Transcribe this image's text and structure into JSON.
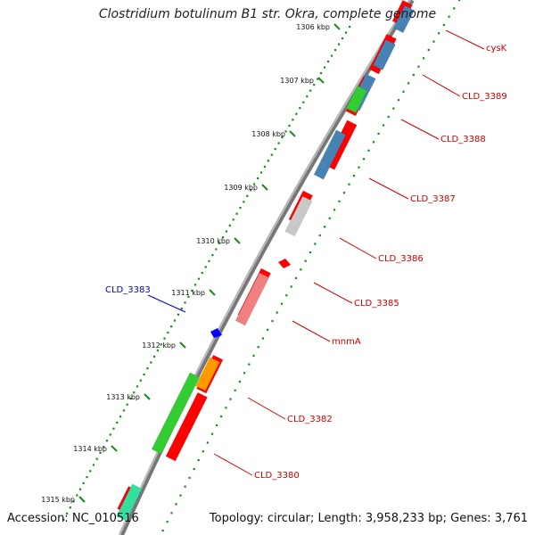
{
  "title": "Clostridium botulinum B1 str. Okra, complete genome",
  "footer": {
    "accession": "Accession: NC_010516",
    "summary": "Topology: circular; Length: 3,958,233 bp; Genes: 3,761"
  },
  "colors": {
    "backbone": "#888888",
    "ruler_dots": "#1a8a1a",
    "forward_cds": "#ff0000",
    "reverse_cds": "#4682b4",
    "label_reverse": "#cc0000",
    "label_forward": "#0000cc",
    "gray_feature": "#c8c8c8",
    "pink_feature": "#f08080",
    "green_feature": "#33cc33",
    "orange_feature": "#ff9900",
    "teal_feature": "#33e0a0"
  },
  "ruler": {
    "tick_labels": [
      "1306 kbp",
      "1307 kbp",
      "1308 kbp",
      "1309 kbp",
      "1310 kbp",
      "1311 kbp",
      "1312 kbp",
      "1313 kbp",
      "1314 kbp",
      "1315 kbp"
    ]
  },
  "gene_labels": [
    {
      "text": "cysK",
      "color": "#cc0000"
    },
    {
      "text": "CLD_3389",
      "color": "#cc0000"
    },
    {
      "text": "CLD_3388",
      "color": "#cc0000"
    },
    {
      "text": "CLD_3387",
      "color": "#cc0000"
    },
    {
      "text": "CLD_3386",
      "color": "#cc0000"
    },
    {
      "text": "CLD_3385",
      "color": "#cc0000"
    },
    {
      "text": "mnmA",
      "color": "#cc0000"
    },
    {
      "text": "CLD_3383",
      "color": "#0000cc"
    },
    {
      "text": "CLD_3382",
      "color": "#cc0000"
    },
    {
      "text": "CLD_3380",
      "color": "#cc0000"
    }
  ]
}
